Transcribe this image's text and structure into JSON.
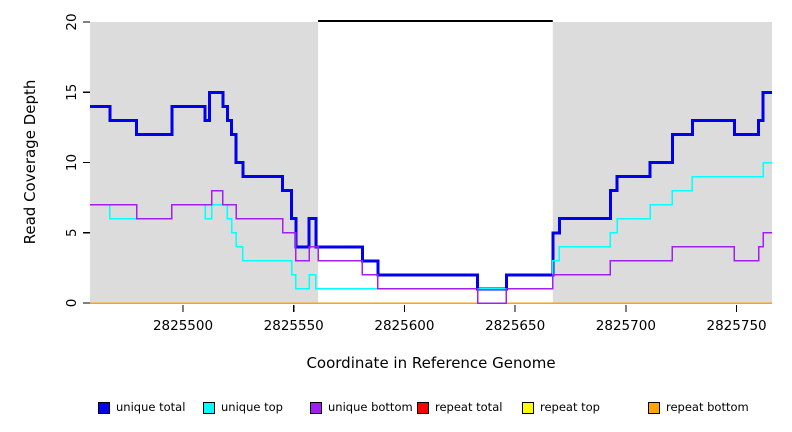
{
  "chart_data": {
    "type": "line",
    "subtype": "step-coverage-plot",
    "title": "",
    "xlabel": "Coordinate in Reference Genome",
    "ylabel": "Read Coverage Depth",
    "xlim": [
      2825458,
      2825766
    ],
    "ylim": [
      0,
      20
    ],
    "x_ticks": [
      2825500,
      2825550,
      2825600,
      2825650,
      2825700,
      2825750
    ],
    "y_ticks": [
      0,
      5,
      10,
      15,
      20
    ],
    "grid": false,
    "legend_position": "bottom",
    "shaded_region_color": "#DCDCDC",
    "shaded_regions": [
      {
        "from": 2825458,
        "to": 2825561
      },
      {
        "from": 2825667,
        "to": 2825766
      }
    ],
    "top_bar": {
      "from": 2825561,
      "to": 2825667,
      "at_y": 20,
      "color": "#000000"
    },
    "draw_order": [
      "repeat total",
      "repeat top",
      "repeat bottom",
      "unique total",
      "unique top",
      "unique bottom"
    ],
    "series": [
      {
        "name": "unique total",
        "color": "#0000EE",
        "width": 3,
        "points": [
          [
            2825458,
            14
          ],
          [
            2825467,
            13
          ],
          [
            2825479,
            12
          ],
          [
            2825495,
            14
          ],
          [
            2825510,
            13
          ],
          [
            2825512,
            15
          ],
          [
            2825518,
            14
          ],
          [
            2825520,
            13
          ],
          [
            2825522,
            12
          ],
          [
            2825524,
            10
          ],
          [
            2825527,
            9
          ],
          [
            2825545,
            8
          ],
          [
            2825549,
            6
          ],
          [
            2825551,
            4
          ],
          [
            2825557,
            6
          ],
          [
            2825560,
            4
          ],
          [
            2825581,
            3
          ],
          [
            2825588,
            2
          ],
          [
            2825633,
            1
          ],
          [
            2825646,
            2
          ],
          [
            2825667,
            5
          ],
          [
            2825670,
            6
          ],
          [
            2825693,
            8
          ],
          [
            2825696,
            9
          ],
          [
            2825711,
            10
          ],
          [
            2825721,
            12
          ],
          [
            2825730,
            13
          ],
          [
            2825749,
            12
          ],
          [
            2825760,
            13
          ],
          [
            2825762,
            15
          ],
          [
            2825766,
            15
          ]
        ]
      },
      {
        "name": "unique top",
        "color": "#00FFFF",
        "width": 1.5,
        "points": [
          [
            2825458,
            7
          ],
          [
            2825467,
            6
          ],
          [
            2825495,
            7
          ],
          [
            2825510,
            6
          ],
          [
            2825513,
            7
          ],
          [
            2825520,
            6
          ],
          [
            2825522,
            5
          ],
          [
            2825524,
            4
          ],
          [
            2825527,
            3
          ],
          [
            2825549,
            2
          ],
          [
            2825551,
            1
          ],
          [
            2825557,
            2
          ],
          [
            2825560,
            1
          ],
          [
            2825667,
            3
          ],
          [
            2825670,
            4
          ],
          [
            2825693,
            5
          ],
          [
            2825696,
            6
          ],
          [
            2825711,
            7
          ],
          [
            2825721,
            8
          ],
          [
            2825730,
            9
          ],
          [
            2825762,
            10
          ],
          [
            2825766,
            10
          ]
        ]
      },
      {
        "name": "unique bottom",
        "color": "#A020F0",
        "width": 1.5,
        "points": [
          [
            2825458,
            7
          ],
          [
            2825479,
            6
          ],
          [
            2825495,
            7
          ],
          [
            2825513,
            8
          ],
          [
            2825518,
            7
          ],
          [
            2825524,
            6
          ],
          [
            2825545,
            5
          ],
          [
            2825551,
            3
          ],
          [
            2825557,
            4
          ],
          [
            2825561,
            3
          ],
          [
            2825581,
            2
          ],
          [
            2825588,
            1
          ],
          [
            2825633,
            0
          ],
          [
            2825646,
            1
          ],
          [
            2825667,
            2
          ],
          [
            2825693,
            3
          ],
          [
            2825721,
            4
          ],
          [
            2825749,
            3
          ],
          [
            2825760,
            4
          ],
          [
            2825762,
            5
          ],
          [
            2825766,
            5
          ]
        ]
      },
      {
        "name": "repeat total",
        "color": "#FF0000",
        "width": 1.5,
        "points": [
          [
            2825458,
            0
          ],
          [
            2825766,
            0
          ]
        ]
      },
      {
        "name": "repeat top",
        "color": "#FFFF00",
        "width": 1.5,
        "points": [
          [
            2825458,
            0
          ],
          [
            2825766,
            0
          ]
        ]
      },
      {
        "name": "repeat bottom",
        "color": "#FFA500",
        "width": 1.5,
        "points": [
          [
            2825458,
            0
          ],
          [
            2825766,
            0
          ]
        ]
      }
    ]
  },
  "legend": {
    "items": [
      {
        "label": "unique total",
        "color": "#0000EE"
      },
      {
        "label": "unique top",
        "color": "#00FFFF"
      },
      {
        "label": "unique bottom",
        "color": "#A020F0"
      },
      {
        "label": "repeat total",
        "color": "#FF0000"
      },
      {
        "label": "repeat top",
        "color": "#FFFF00"
      },
      {
        "label": "repeat bottom",
        "color": "#FFA500"
      }
    ]
  }
}
